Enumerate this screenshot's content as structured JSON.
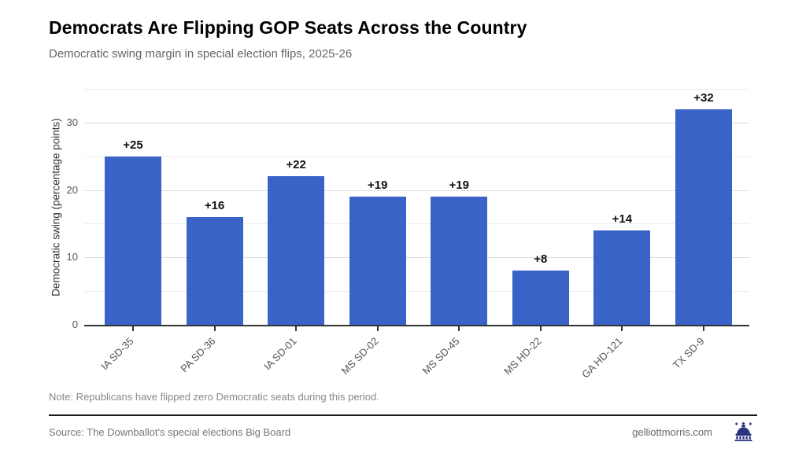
{
  "chart_data": {
    "type": "bar",
    "title": "Democrats Are Flipping GOP Seats Across the Country",
    "subtitle": "Democratic swing margin in special election flips, 2025-26",
    "categories": [
      "IA SD-35",
      "PA SD-36",
      "IA SD-01",
      "MS SD-02",
      "MS SD-45",
      "MS HD-22",
      "GA HD-121",
      "TX SD-9"
    ],
    "values": [
      25,
      16,
      22,
      19,
      19,
      8,
      14,
      32
    ],
    "bar_labels": [
      "+25",
      "+16",
      "+22",
      "+19",
      "+19",
      "+8",
      "+14",
      "+32"
    ],
    "xlabel": "",
    "ylabel": "Democratic swing (percentage points)",
    "ylim": [
      0,
      35
    ],
    "yticks": [
      0,
      10,
      20,
      30
    ],
    "minor_gridlines": [
      5,
      15,
      25,
      35
    ],
    "grid": "horizontal",
    "legend": "none",
    "bar_color": "#3a63c8"
  },
  "note": "Note: Republicans have flipped zero Democratic seats during this period.",
  "footer": {
    "source": "Source: The Downballot's special elections Big Board",
    "site": "gelliottmorris.com",
    "logo_icon": "capitol-dome-icon",
    "logo_color": "#2b3282"
  }
}
